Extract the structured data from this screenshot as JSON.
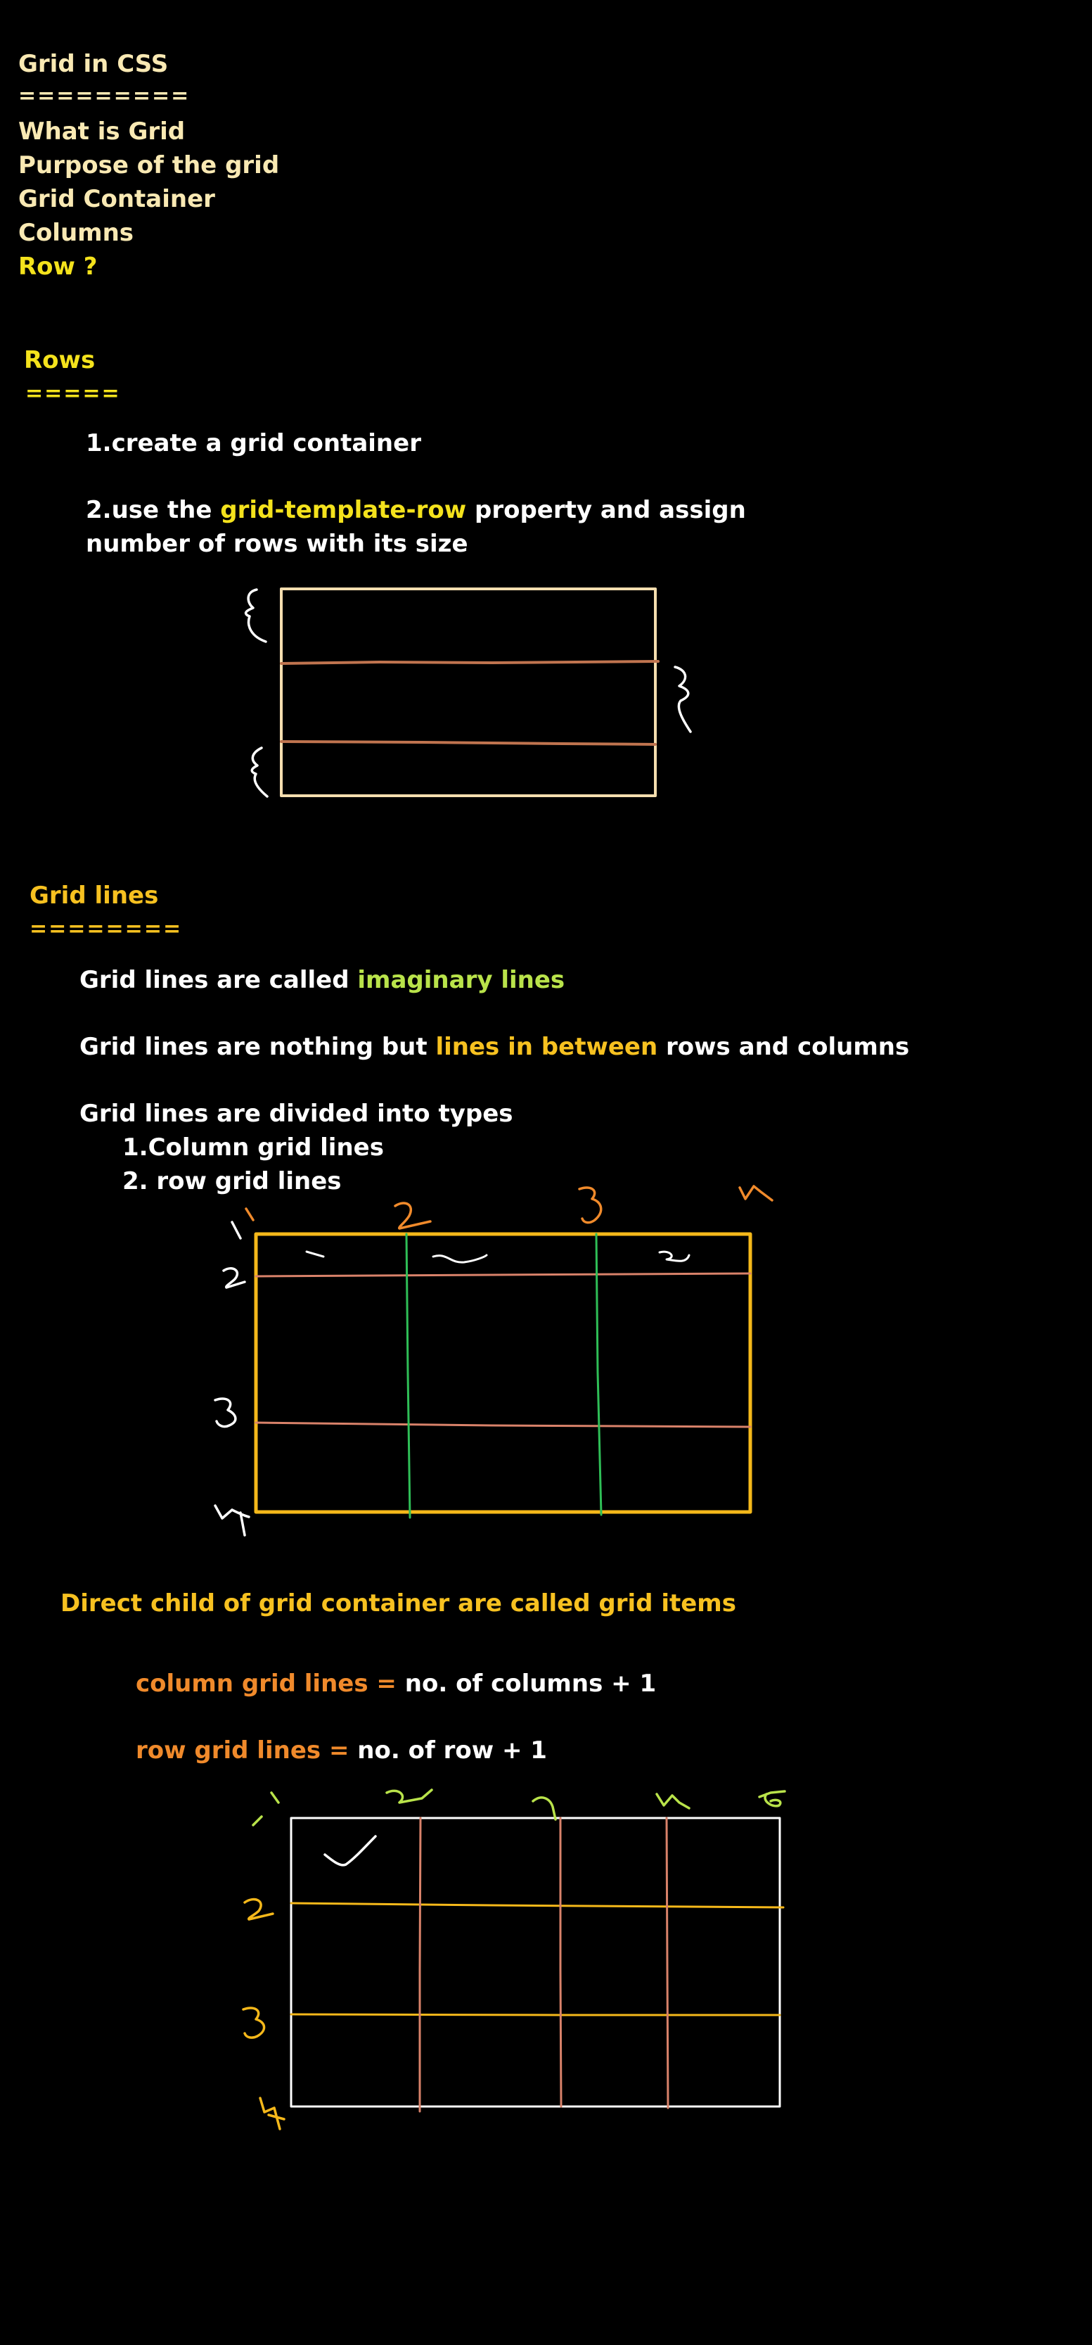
{
  "colors": {
    "background": "#000000",
    "cream_text": "#f9e9b3",
    "heading_yellow": "#f4e21c",
    "highlight_gold": "#f7c120",
    "highlight_green": "#b9e34a",
    "highlight_orange": "#f08a2b",
    "grid_outline_cream": "#f5deaf",
    "grid_outline_gold": "#f5b81a",
    "line_brown": "#c0744f",
    "line_green": "#2fbf57",
    "line_salmon": "#d9826a"
  },
  "intro": {
    "title": "Grid in CSS",
    "underline": "=========",
    "items": [
      "What is Grid",
      "Purpose of the grid",
      "Grid Container",
      "Columns",
      "Row ?"
    ]
  },
  "rows_section": {
    "heading": "Rows",
    "underline": "=====",
    "step1": "1.create a grid container",
    "step2_prefix": "2.use the ",
    "step2_highlight": "grid-template-row",
    "step2_suffix": " property and assign",
    "step2_line2": "number of rows with its size"
  },
  "grid_lines_section": {
    "heading": "Grid lines",
    "underline": "========",
    "line1_prefix": "Grid lines are called ",
    "line1_highlight": "imaginary lines",
    "line2_prefix": "Grid lines are nothing but ",
    "line2_highlight": "lines in between",
    "line2_suffix": " rows and columns",
    "line3": "Grid lines are divided into types",
    "type1": "1.Column grid lines",
    "type2": "2. row grid lines"
  },
  "grid_items_section": {
    "statement": "Direct child of grid container are called grid items",
    "formula_col_label": "column grid lines =",
    "formula_col_value": " no. of columns + 1",
    "formula_row_label": "row grid lines =",
    "formula_row_value": " no. of row + 1"
  }
}
